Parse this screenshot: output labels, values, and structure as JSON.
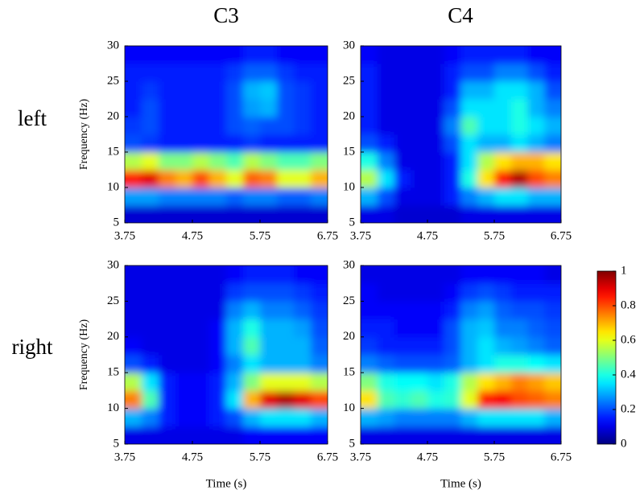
{
  "column_titles": [
    "C3",
    "C4"
  ],
  "row_labels": [
    "left",
    "right"
  ],
  "colorbar": {
    "colormap": "jet",
    "lim": [
      0,
      1
    ],
    "ticks": [
      0,
      0.2,
      0.4,
      0.6,
      0.8,
      1
    ]
  },
  "chart_data": [
    {
      "type": "heatmap",
      "colormap": "jet",
      "ylabel": "Frequency (Hz)",
      "xlim": [
        3.75,
        6.75
      ],
      "xticks": [
        3.75,
        4.75,
        5.75,
        6.75
      ],
      "ylim": [
        5,
        30
      ],
      "yticks": [
        5,
        10,
        15,
        20,
        25,
        30
      ],
      "xbins": [
        3.75,
        4,
        4.25,
        4.5,
        4.75,
        5,
        5.25,
        5.5,
        5.75,
        6,
        6.25,
        6.5,
        6.75
      ],
      "ybins": [
        5,
        7.5,
        10,
        12.5,
        15,
        17.5,
        20,
        22.5,
        25,
        27.5,
        30
      ],
      "z": [
        [
          0.08,
          0.08,
          0.08,
          0.08,
          0.08,
          0.08,
          0.08,
          0.08,
          0.08,
          0.08,
          0.08,
          0.08
        ],
        [
          0.28,
          0.28,
          0.25,
          0.25,
          0.25,
          0.25,
          0.22,
          0.25,
          0.25,
          0.22,
          0.22,
          0.25
        ],
        [
          0.85,
          0.9,
          0.75,
          0.7,
          0.8,
          0.7,
          0.6,
          0.78,
          0.75,
          0.6,
          0.6,
          0.7
        ],
        [
          0.55,
          0.6,
          0.5,
          0.5,
          0.55,
          0.5,
          0.45,
          0.55,
          0.5,
          0.45,
          0.45,
          0.5
        ],
        [
          0.2,
          0.18,
          0.15,
          0.15,
          0.15,
          0.15,
          0.15,
          0.18,
          0.15,
          0.15,
          0.15,
          0.15
        ],
        [
          0.18,
          0.2,
          0.15,
          0.15,
          0.15,
          0.15,
          0.2,
          0.22,
          0.2,
          0.2,
          0.18,
          0.15
        ],
        [
          0.15,
          0.2,
          0.15,
          0.15,
          0.15,
          0.15,
          0.2,
          0.28,
          0.3,
          0.2,
          0.18,
          0.15
        ],
        [
          0.15,
          0.18,
          0.15,
          0.15,
          0.15,
          0.15,
          0.2,
          0.3,
          0.32,
          0.2,
          0.18,
          0.15
        ],
        [
          0.15,
          0.15,
          0.15,
          0.15,
          0.15,
          0.15,
          0.18,
          0.22,
          0.22,
          0.18,
          0.15,
          0.15
        ],
        [
          0.12,
          0.12,
          0.12,
          0.12,
          0.12,
          0.12,
          0.12,
          0.15,
          0.15,
          0.12,
          0.12,
          0.12
        ]
      ]
    },
    {
      "type": "heatmap",
      "colormap": "jet",
      "xlim": [
        3.75,
        6.75
      ],
      "xticks": [
        3.75,
        4.75,
        5.75,
        6.75
      ],
      "ylim": [
        5,
        30
      ],
      "yticks": [
        5,
        10,
        15,
        20,
        25,
        30
      ],
      "xbins": [
        3.75,
        4,
        4.25,
        4.5,
        4.75,
        5,
        5.25,
        5.5,
        5.75,
        6,
        6.25,
        6.5,
        6.75
      ],
      "ybins": [
        5,
        7.5,
        10,
        12.5,
        15,
        17.5,
        20,
        22.5,
        25,
        27.5,
        30
      ],
      "z": [
        [
          0.1,
          0.1,
          0.08,
          0.08,
          0.08,
          0.08,
          0.1,
          0.1,
          0.1,
          0.1,
          0.1,
          0.1
        ],
        [
          0.3,
          0.2,
          0.1,
          0.1,
          0.1,
          0.15,
          0.25,
          0.3,
          0.35,
          0.35,
          0.3,
          0.3
        ],
        [
          0.55,
          0.35,
          0.15,
          0.1,
          0.1,
          0.15,
          0.4,
          0.65,
          0.85,
          0.95,
          0.8,
          0.75
        ],
        [
          0.4,
          0.25,
          0.1,
          0.1,
          0.1,
          0.15,
          0.35,
          0.55,
          0.65,
          0.7,
          0.7,
          0.65
        ],
        [
          0.2,
          0.15,
          0.1,
          0.1,
          0.1,
          0.2,
          0.35,
          0.3,
          0.3,
          0.35,
          0.3,
          0.25
        ],
        [
          0.15,
          0.1,
          0.1,
          0.1,
          0.1,
          0.25,
          0.45,
          0.35,
          0.35,
          0.4,
          0.35,
          0.3
        ],
        [
          0.15,
          0.1,
          0.1,
          0.1,
          0.1,
          0.2,
          0.35,
          0.35,
          0.35,
          0.4,
          0.3,
          0.25
        ],
        [
          0.15,
          0.1,
          0.1,
          0.1,
          0.1,
          0.15,
          0.3,
          0.3,
          0.35,
          0.35,
          0.3,
          0.2
        ],
        [
          0.15,
          0.1,
          0.1,
          0.1,
          0.1,
          0.15,
          0.2,
          0.2,
          0.25,
          0.25,
          0.2,
          0.15
        ],
        [
          0.12,
          0.1,
          0.1,
          0.1,
          0.1,
          0.12,
          0.15,
          0.15,
          0.15,
          0.15,
          0.12,
          0.12
        ]
      ]
    },
    {
      "type": "heatmap",
      "colormap": "jet",
      "xlabel": "Time (s)",
      "ylabel": "Frequency (Hz)",
      "xlim": [
        3.75,
        6.75
      ],
      "xticks": [
        3.75,
        4.75,
        5.75,
        6.75
      ],
      "ylim": [
        5,
        30
      ],
      "yticks": [
        5,
        10,
        15,
        20,
        25,
        30
      ],
      "xbins": [
        3.75,
        4,
        4.25,
        4.5,
        4.75,
        5,
        5.25,
        5.5,
        5.75,
        6,
        6.25,
        6.5,
        6.75
      ],
      "ybins": [
        5,
        7.5,
        10,
        12.5,
        15,
        17.5,
        20,
        22.5,
        25,
        27.5,
        30
      ],
      "z": [
        [
          0.1,
          0.1,
          0.1,
          0.1,
          0.1,
          0.1,
          0.1,
          0.12,
          0.12,
          0.12,
          0.12,
          0.12
        ],
        [
          0.3,
          0.25,
          0.15,
          0.12,
          0.12,
          0.15,
          0.2,
          0.3,
          0.35,
          0.35,
          0.35,
          0.3
        ],
        [
          0.75,
          0.45,
          0.15,
          0.12,
          0.12,
          0.15,
          0.35,
          0.7,
          0.9,
          0.95,
          0.9,
          0.8
        ],
        [
          0.55,
          0.35,
          0.15,
          0.12,
          0.12,
          0.15,
          0.3,
          0.5,
          0.6,
          0.6,
          0.6,
          0.55
        ],
        [
          0.2,
          0.15,
          0.1,
          0.1,
          0.1,
          0.12,
          0.25,
          0.35,
          0.3,
          0.3,
          0.3,
          0.25
        ],
        [
          0.12,
          0.1,
          0.1,
          0.1,
          0.1,
          0.12,
          0.3,
          0.45,
          0.3,
          0.3,
          0.3,
          0.22
        ],
        [
          0.1,
          0.1,
          0.1,
          0.1,
          0.1,
          0.12,
          0.3,
          0.4,
          0.3,
          0.3,
          0.28,
          0.2
        ],
        [
          0.1,
          0.1,
          0.1,
          0.1,
          0.1,
          0.1,
          0.25,
          0.3,
          0.25,
          0.25,
          0.22,
          0.18
        ],
        [
          0.1,
          0.1,
          0.1,
          0.1,
          0.1,
          0.1,
          0.18,
          0.2,
          0.2,
          0.2,
          0.18,
          0.15
        ],
        [
          0.1,
          0.1,
          0.1,
          0.1,
          0.1,
          0.1,
          0.12,
          0.15,
          0.15,
          0.15,
          0.12,
          0.12
        ]
      ]
    },
    {
      "type": "heatmap",
      "colormap": "jet",
      "xlabel": "Time (s)",
      "xlim": [
        3.75,
        6.75
      ],
      "xticks": [
        3.75,
        4.75,
        5.75,
        6.75
      ],
      "ylim": [
        5,
        30
      ],
      "yticks": [
        5,
        10,
        15,
        20,
        25,
        30
      ],
      "xbins": [
        3.75,
        4,
        4.25,
        4.5,
        4.75,
        5,
        5.25,
        5.5,
        5.75,
        6,
        6.25,
        6.5,
        6.75
      ],
      "ybins": [
        5,
        7.5,
        10,
        12.5,
        15,
        17.5,
        20,
        22.5,
        25,
        27.5,
        30
      ],
      "z": [
        [
          0.1,
          0.1,
          0.1,
          0.1,
          0.1,
          0.1,
          0.1,
          0.1,
          0.1,
          0.1,
          0.1,
          0.1
        ],
        [
          0.3,
          0.28,
          0.25,
          0.25,
          0.25,
          0.25,
          0.3,
          0.35,
          0.35,
          0.35,
          0.35,
          0.3
        ],
        [
          0.65,
          0.45,
          0.42,
          0.45,
          0.4,
          0.42,
          0.6,
          0.85,
          0.88,
          0.8,
          0.78,
          0.75
        ],
        [
          0.5,
          0.4,
          0.38,
          0.38,
          0.35,
          0.4,
          0.55,
          0.65,
          0.7,
          0.75,
          0.72,
          0.68
        ],
        [
          0.25,
          0.22,
          0.2,
          0.2,
          0.2,
          0.22,
          0.3,
          0.35,
          0.4,
          0.4,
          0.38,
          0.35
        ],
        [
          0.18,
          0.15,
          0.15,
          0.15,
          0.15,
          0.2,
          0.3,
          0.35,
          0.3,
          0.28,
          0.25,
          0.22
        ],
        [
          0.15,
          0.15,
          0.12,
          0.12,
          0.12,
          0.2,
          0.3,
          0.32,
          0.25,
          0.25,
          0.22,
          0.2
        ],
        [
          0.12,
          0.12,
          0.12,
          0.12,
          0.12,
          0.15,
          0.25,
          0.28,
          0.22,
          0.2,
          0.2,
          0.18
        ],
        [
          0.12,
          0.1,
          0.1,
          0.1,
          0.1,
          0.12,
          0.18,
          0.2,
          0.18,
          0.15,
          0.15,
          0.15
        ],
        [
          0.1,
          0.1,
          0.1,
          0.1,
          0.1,
          0.1,
          0.12,
          0.12,
          0.12,
          0.12,
          0.12,
          0.1
        ]
      ]
    }
  ]
}
